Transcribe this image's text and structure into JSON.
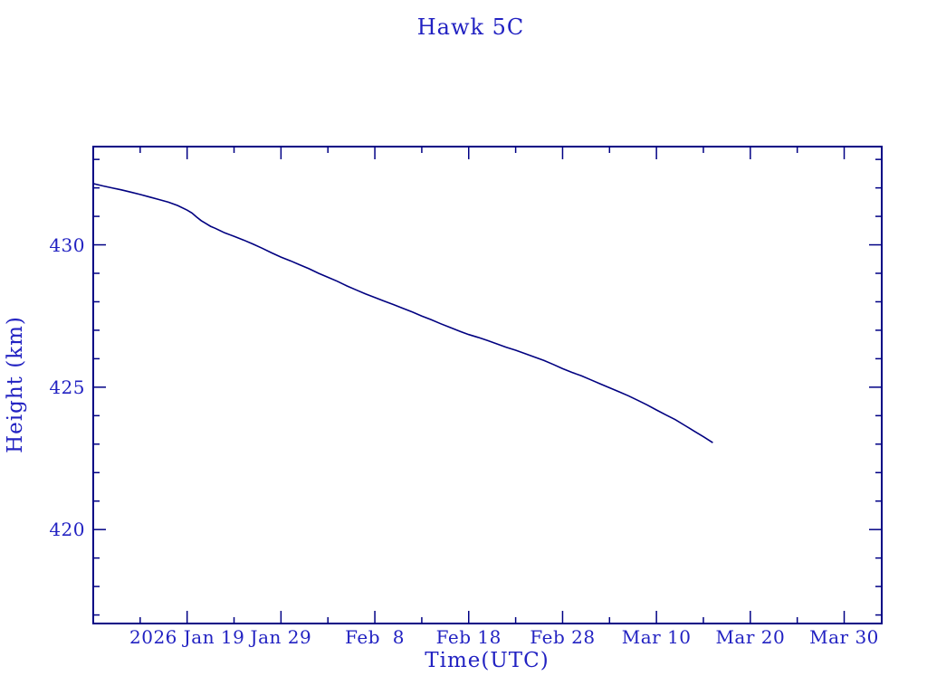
{
  "title": "Hawk 5C",
  "colors": {
    "background": "#ffffff",
    "text": "#2222c2",
    "axis": "#000085",
    "line": "#000080"
  },
  "chart_data": {
    "type": "line",
    "title": "Hawk 5C",
    "xlabel": "Time(UTC)",
    "ylabel": "Height (km)",
    "x_unit": "days, day 0 = 2026 Jan 9",
    "xlim": [
      0,
      84
    ],
    "ylim": [
      416.7,
      433.45
    ],
    "grid": false,
    "legend": "none",
    "x_major_ticks": [
      {
        "day": 10,
        "label": "2026 Jan 19"
      },
      {
        "day": 20,
        "label": "Jan 29"
      },
      {
        "day": 30,
        "label": "Feb  8"
      },
      {
        "day": 40,
        "label": "Feb 18"
      },
      {
        "day": 50,
        "label": "Feb 28"
      },
      {
        "day": 60,
        "label": "Mar 10"
      },
      {
        "day": 70,
        "label": "Mar 20"
      },
      {
        "day": 80,
        "label": "Mar 30"
      }
    ],
    "x_minor_tick_days": [
      5,
      15,
      25,
      35,
      45,
      55,
      65,
      75
    ],
    "y_major_ticks": [
      {
        "value": 430,
        "label": "430"
      },
      {
        "value": 425,
        "label": "425"
      },
      {
        "value": 420,
        "label": "420"
      }
    ],
    "y_minor_tick_values": [
      417,
      418,
      419,
      421,
      422,
      423,
      424,
      426,
      427,
      428,
      429,
      431,
      432,
      433
    ],
    "series": [
      {
        "name": "height",
        "points": [
          [
            0,
            432.15
          ],
          [
            1,
            432.07
          ],
          [
            2,
            432.0
          ],
          [
            3,
            431.93
          ],
          [
            4,
            431.85
          ],
          [
            5,
            431.77
          ],
          [
            6,
            431.68
          ],
          [
            7,
            431.59
          ],
          [
            8,
            431.5
          ],
          [
            9,
            431.38
          ],
          [
            10,
            431.22
          ],
          [
            10.5,
            431.12
          ],
          [
            11,
            430.98
          ],
          [
            11.5,
            430.85
          ],
          [
            12,
            430.75
          ],
          [
            12.5,
            430.65
          ],
          [
            13,
            430.58
          ],
          [
            14,
            430.42
          ],
          [
            15,
            430.3
          ],
          [
            16,
            430.17
          ],
          [
            17,
            430.03
          ],
          [
            18,
            429.88
          ],
          [
            19,
            429.72
          ],
          [
            20,
            429.57
          ],
          [
            21,
            429.44
          ],
          [
            22,
            429.3
          ],
          [
            23,
            429.16
          ],
          [
            24,
            429.0
          ],
          [
            25,
            428.86
          ],
          [
            26,
            428.72
          ],
          [
            27,
            428.56
          ],
          [
            28,
            428.42
          ],
          [
            29,
            428.28
          ],
          [
            30,
            428.15
          ],
          [
            31,
            428.02
          ],
          [
            32,
            427.9
          ],
          [
            33,
            427.77
          ],
          [
            34,
            427.64
          ],
          [
            35,
            427.5
          ],
          [
            36,
            427.37
          ],
          [
            37,
            427.23
          ],
          [
            38,
            427.1
          ],
          [
            39,
            426.97
          ],
          [
            40,
            426.85
          ],
          [
            41,
            426.75
          ],
          [
            42,
            426.64
          ],
          [
            43,
            426.52
          ],
          [
            44,
            426.4
          ],
          [
            45,
            426.3
          ],
          [
            46,
            426.18
          ],
          [
            47,
            426.06
          ],
          [
            48,
            425.94
          ],
          [
            49,
            425.8
          ],
          [
            50,
            425.65
          ],
          [
            51,
            425.52
          ],
          [
            52,
            425.4
          ],
          [
            53,
            425.26
          ],
          [
            54,
            425.12
          ],
          [
            55,
            424.98
          ],
          [
            56,
            424.84
          ],
          [
            57,
            424.7
          ],
          [
            58,
            424.54
          ],
          [
            59,
            424.38
          ],
          [
            60,
            424.2
          ],
          [
            61,
            424.03
          ],
          [
            62,
            423.86
          ],
          [
            63,
            423.66
          ],
          [
            64,
            423.46
          ],
          [
            65,
            423.26
          ],
          [
            66,
            423.05
          ]
        ]
      }
    ]
  }
}
